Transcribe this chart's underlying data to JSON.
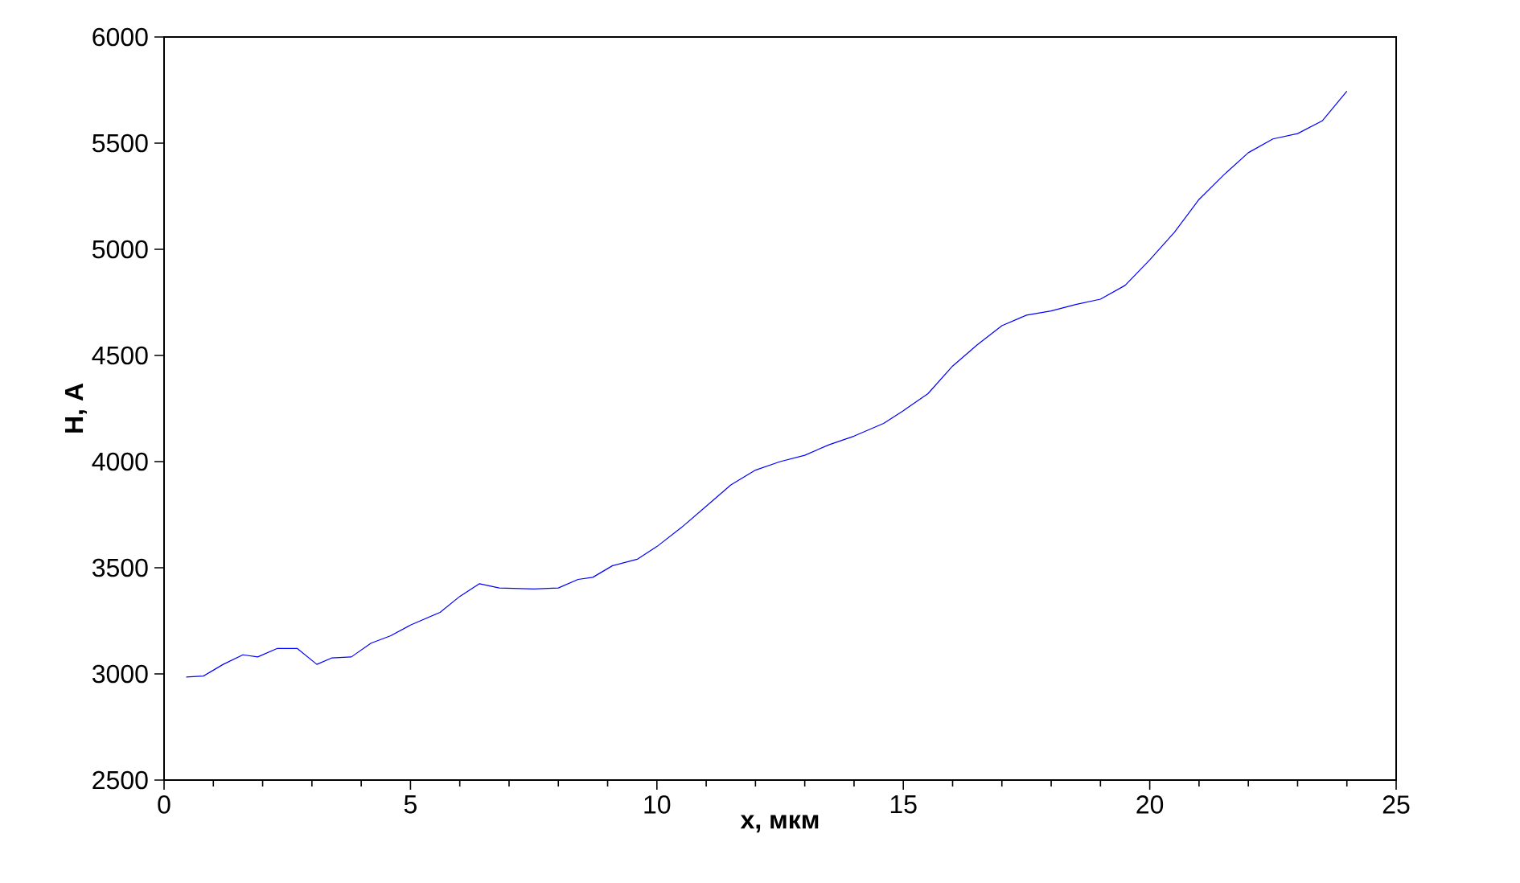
{
  "chart_data": {
    "type": "line",
    "xlabel": "x, мкм",
    "ylabel": "H, A",
    "xlim": [
      0,
      25
    ],
    "xticks": [
      0,
      5,
      10,
      15,
      20,
      25
    ],
    "ylim": [
      2500,
      6000
    ],
    "yticks": [
      2500,
      3000,
      3500,
      4000,
      4500,
      5000,
      5500,
      6000
    ],
    "marker": "none",
    "line_style": "solid",
    "x": [
      0.45,
      0.8,
      1.2,
      1.6,
      1.9,
      2.3,
      2.7,
      3.1,
      3.4,
      3.8,
      4.2,
      4.6,
      5.0,
      5.6,
      6.0,
      6.4,
      6.8,
      7.5,
      8.0,
      8.4,
      8.7,
      9.1,
      9.6,
      10.0,
      10.5,
      11.0,
      11.5,
      12.0,
      12.5,
      13.0,
      13.5,
      14.0,
      14.6,
      15.0,
      15.5,
      16.0,
      16.5,
      17.0,
      17.5,
      18.0,
      18.5,
      19.0,
      19.5,
      20.0,
      20.5,
      21.0,
      21.5,
      22.0,
      22.5,
      23.0,
      23.5,
      24.0
    ],
    "series": [
      {
        "color": "#0000ff",
        "values": [
          2985,
          2990,
          3045,
          3090,
          3080,
          3120,
          3120,
          3045,
          3075,
          3080,
          3145,
          3180,
          3230,
          3290,
          3365,
          3425,
          3405,
          3400,
          3405,
          3445,
          3455,
          3510,
          3540,
          3600,
          3690,
          3790,
          3890,
          3960,
          4000,
          4030,
          4080,
          4120,
          4180,
          4240,
          4320,
          4450,
          4550,
          4640,
          4690,
          4710,
          4740,
          4765,
          4830,
          4950,
          5080,
          5235,
          5350,
          5455,
          5520,
          5545,
          5605,
          5745
        ]
      }
    ]
  }
}
